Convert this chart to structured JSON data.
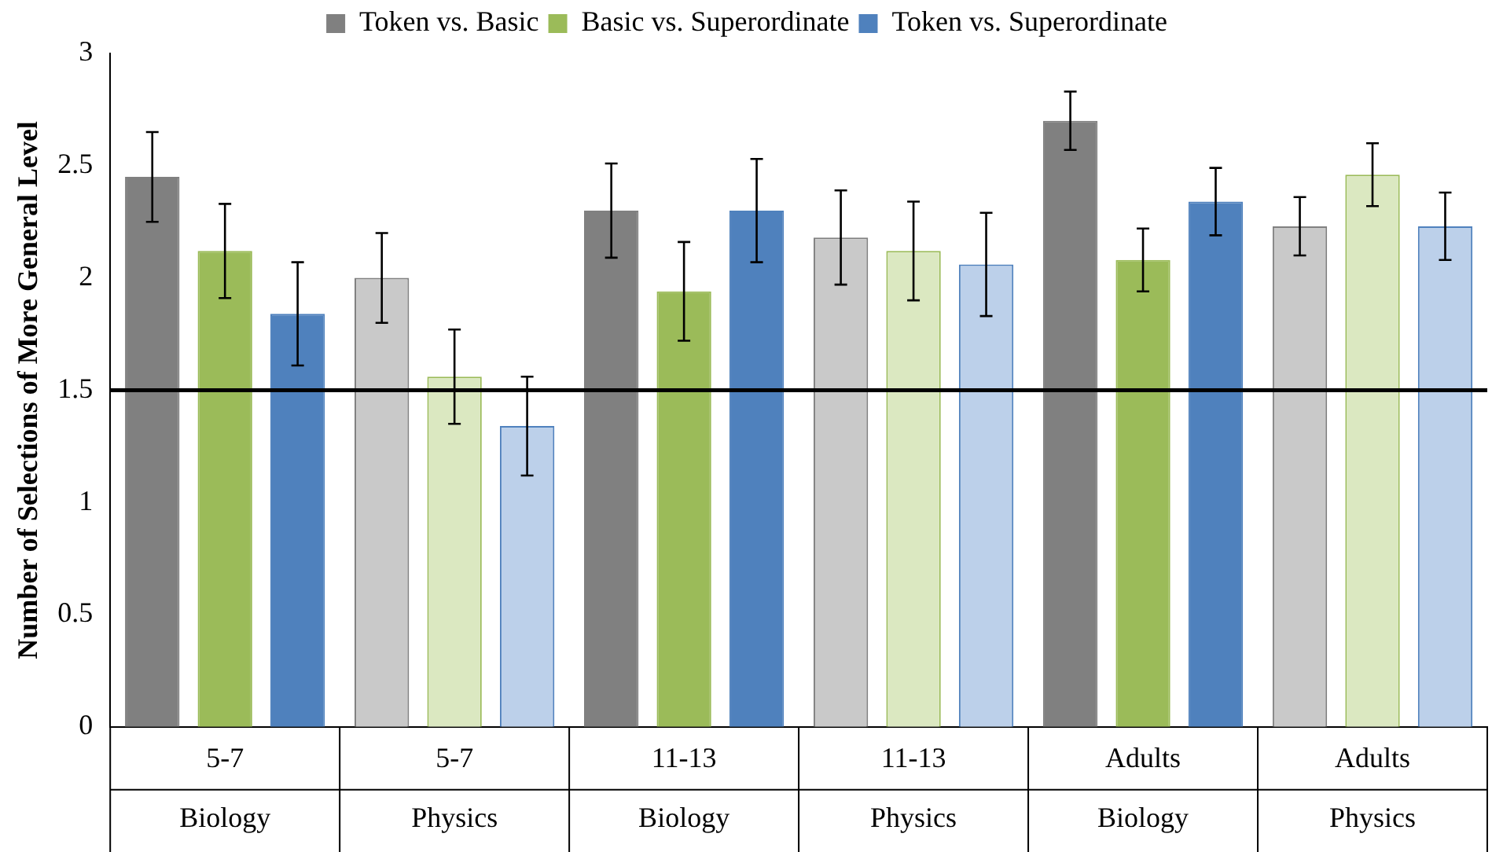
{
  "chart_data": {
    "type": "bar",
    "ylabel": "Number of Selections of More General Level",
    "categories": [
      "5-7\nBiology",
      "5-7\nPhysics",
      "11-13\nBiology",
      "11-13\nPhysics",
      "Adults\nBiology",
      "Adults\nPhysics"
    ],
    "series": [
      {
        "name": "Token vs. Basic",
        "color": "#808080",
        "colors": [
          "#808080",
          "#c9c9c9",
          "#808080",
          "#c9c9c9",
          "#808080",
          "#c9c9c9"
        ],
        "values": [
          2.45,
          2.0,
          2.3,
          2.18,
          2.7,
          2.23
        ],
        "errors": [
          0.2,
          0.2,
          0.21,
          0.21,
          0.13,
          0.13
        ]
      },
      {
        "name": "Basic vs. Superordinate",
        "color": "#9bbb59",
        "colors": [
          "#9bbb59",
          "#dbe8c1",
          "#9bbb59",
          "#dbe8c1",
          "#9bbb59",
          "#dbe8c1"
        ],
        "values": [
          2.12,
          1.56,
          1.94,
          2.12,
          2.08,
          2.46
        ],
        "errors": [
          0.21,
          0.21,
          0.22,
          0.22,
          0.14,
          0.14
        ]
      },
      {
        "name": "Token vs. Superordinate",
        "color": "#4f81bd",
        "colors": [
          "#4f81bd",
          "#bcd0ea",
          "#4f81bd",
          "#bcd0ea",
          "#4f81bd",
          "#bcd0ea"
        ],
        "values": [
          1.84,
          1.34,
          2.3,
          2.06,
          2.34,
          2.23
        ],
        "errors": [
          0.23,
          0.22,
          0.23,
          0.23,
          0.15,
          0.15
        ]
      }
    ],
    "ylim": [
      0,
      3
    ],
    "yticks": [
      0,
      0.5,
      1,
      1.5,
      2,
      2.5,
      3
    ],
    "grid": false,
    "legend": "top",
    "ref_lines": [
      {
        "axis": "y",
        "value": 1.5,
        "color": "#000000"
      }
    ]
  }
}
